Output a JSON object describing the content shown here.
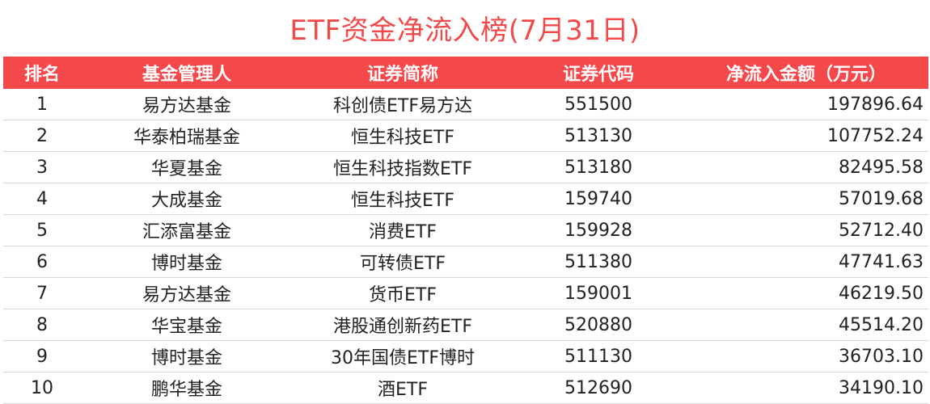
{
  "title": "ETF资金净流入榜(7月31日)",
  "colors": {
    "accent": "#f5484a",
    "title": "#f04a4a"
  },
  "table": {
    "headers": [
      "排名",
      "基金管理人",
      "证券简称",
      "证券代码",
      "净流入金额（万元）"
    ],
    "rows": [
      [
        "1",
        "易方达基金",
        "科创债ETF易方达",
        "551500",
        "197896.64"
      ],
      [
        "2",
        "华泰柏瑞基金",
        "恒生科技ETF",
        "513130",
        "107752.24"
      ],
      [
        "3",
        "华夏基金",
        "恒生科技指数ETF",
        "513180",
        "82495.58"
      ],
      [
        "4",
        "大成基金",
        "恒生科技ETF",
        "159740",
        "57019.68"
      ],
      [
        "5",
        "汇添富基金",
        "消费ETF",
        "159928",
        "52712.40"
      ],
      [
        "6",
        "博时基金",
        "可转债ETF",
        "511380",
        "47741.63"
      ],
      [
        "7",
        "易方达基金",
        "货币ETF",
        "159001",
        "46219.50"
      ],
      [
        "8",
        "华宝基金",
        "港股通创新药ETF",
        "520880",
        "45514.20"
      ],
      [
        "9",
        "博时基金",
        "30年国债ETF博时",
        "511130",
        "36703.10"
      ],
      [
        "10",
        "鹏华基金",
        "酒ETF",
        "512690",
        "34190.10"
      ]
    ]
  }
}
